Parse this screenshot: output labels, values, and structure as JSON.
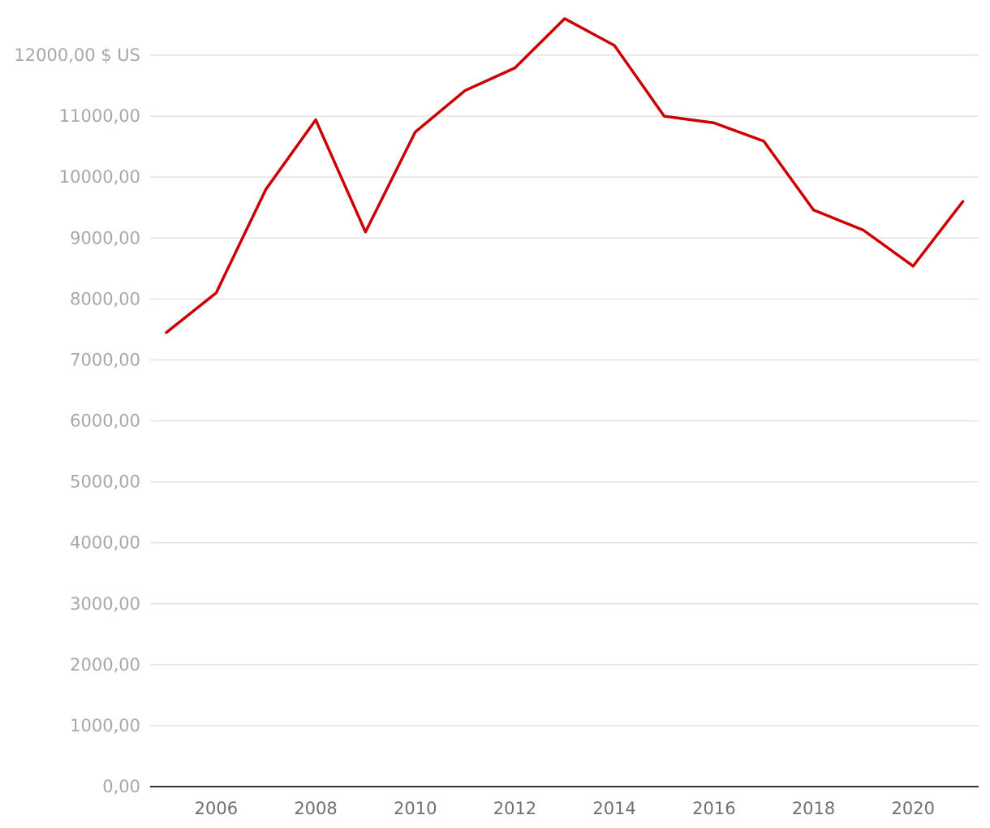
{
  "chart_data": {
    "type": "line",
    "title": "",
    "xlabel": "",
    "ylabel": "",
    "y_unit_label": "$ US",
    "x": [
      2005,
      2006,
      2007,
      2008,
      2009,
      2010,
      2011,
      2012,
      2013,
      2014,
      2015,
      2016,
      2017,
      2018,
      2019,
      2020,
      2021
    ],
    "series": [
      {
        "values": [
          7450,
          8100,
          9800,
          10940,
          9100,
          10740,
          11420,
          11790,
          12600,
          12160,
          11000,
          10890,
          10590,
          9460,
          9130,
          8540,
          9600
        ],
        "color": "#cc0000"
      }
    ],
    "ylim": [
      0,
      12000
    ],
    "y_ticks": [
      0,
      1000,
      2000,
      3000,
      4000,
      5000,
      6000,
      7000,
      8000,
      9000,
      10000,
      11000,
      12000
    ],
    "y_tick_labels": [
      "0,00",
      "1000,00",
      "2000,00",
      "3000,00",
      "4000,00",
      "5000,00",
      "6000,00",
      "7000,00",
      "8000,00",
      "9000,00",
      "10000,00",
      "11000,00",
      "12000,00 $ US"
    ],
    "x_ticks": [
      2006,
      2008,
      2010,
      2012,
      2014,
      2016,
      2018,
      2020
    ],
    "x_tick_labels": [
      "2006",
      "2008",
      "2010",
      "2012",
      "2014",
      "2016",
      "2018",
      "2020"
    ],
    "grid": true,
    "legend": "none"
  }
}
